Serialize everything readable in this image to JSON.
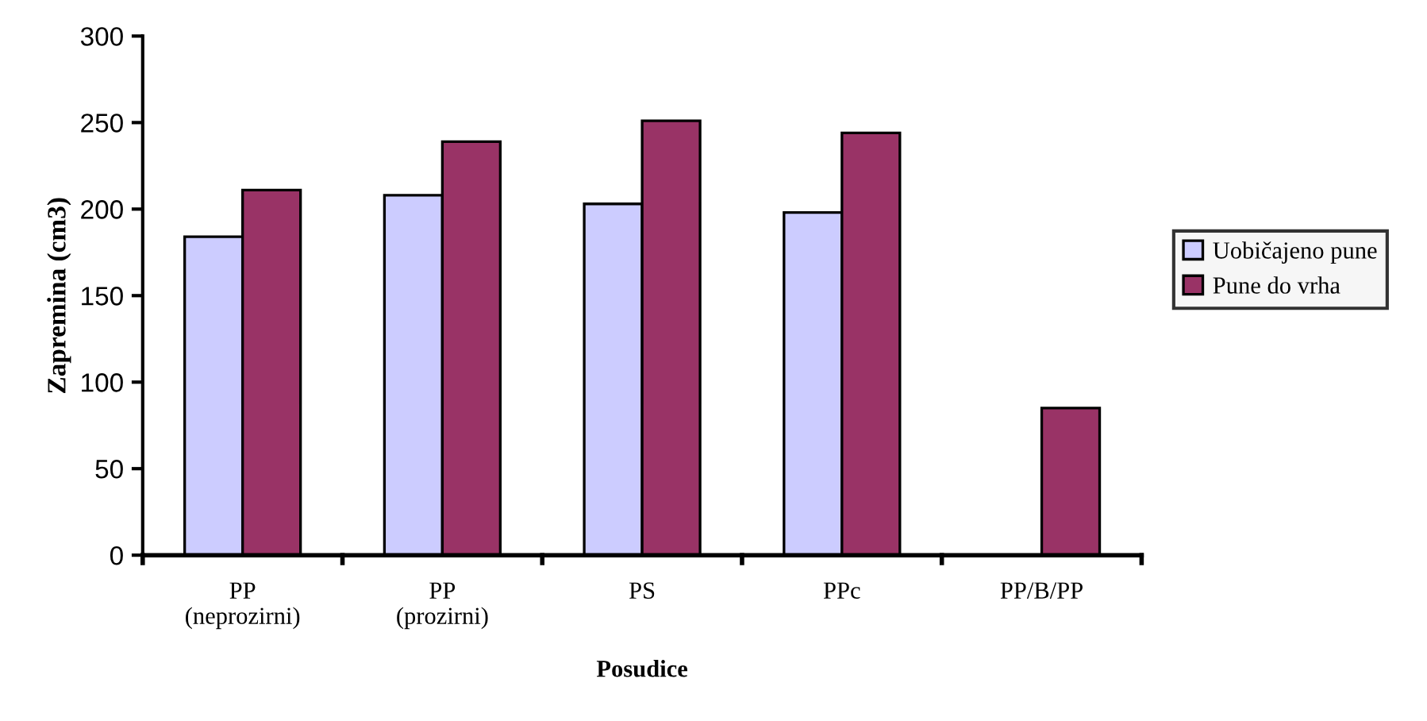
{
  "chart_data": {
    "type": "bar",
    "xlabel": "Posudice",
    "ylabel": "Zapremina (cm3)",
    "categories": [
      "PP\n(neprozirni)",
      "PP\n(prozirni)",
      "PS",
      "PPc",
      "PP/B/PP"
    ],
    "series": [
      {
        "name": "Uobičajeno pune",
        "color": "#ccccff",
        "values": [
          184,
          208,
          203,
          198,
          null
        ]
      },
      {
        "name": "Pune do vrha",
        "color": "#993366",
        "values": [
          211,
          239,
          251,
          244,
          85
        ]
      }
    ],
    "ylim": [
      0,
      300
    ],
    "yticks": [
      0,
      50,
      100,
      150,
      200,
      250,
      300
    ],
    "grid": false,
    "legend": "right"
  }
}
